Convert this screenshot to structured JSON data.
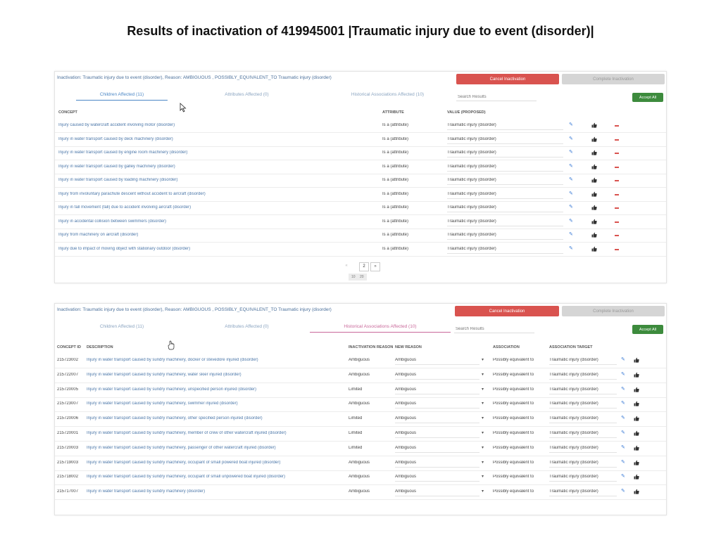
{
  "slide_title": "Results of inactivation of 419945001 |Traumatic injury due to event (disorder)|",
  "panel1": {
    "header_text": "Inactivation: Traumatic injury due to event (disorder), Reason: AMBIGUOUS , POSSIBLY_EQUIVALENT_TO Traumatic injury (disorder)",
    "cancel_label": "Cancel Inactivation",
    "complete_label": "Complete Inactivation",
    "tabs": [
      "Children Affected (11)",
      "Attributes Affected (0)",
      "Historical Associations Affected (10)"
    ],
    "search_placeholder": "Search Results",
    "accept_label": "Accept All",
    "columns": [
      "CONCEPT",
      "ATTRIBUTE",
      "VALUE (PROPOSED)"
    ],
    "rows": [
      {
        "concept": "Injury caused by watercraft accident involving motor (disorder)",
        "attribute": "Is a (attribute)",
        "value": "Traumatic injury (disorder)"
      },
      {
        "concept": "Injury in water transport caused by deck machinery (disorder)",
        "attribute": "Is a (attribute)",
        "value": "Traumatic injury (disorder)"
      },
      {
        "concept": "Injury in water transport caused by engine room machinery (disorder)",
        "attribute": "Is a (attribute)",
        "value": "Traumatic injury (disorder)"
      },
      {
        "concept": "Injury in water transport caused by galley machinery (disorder)",
        "attribute": "Is a (attribute)",
        "value": "Traumatic injury (disorder)"
      },
      {
        "concept": "Injury in water transport caused by loading machinery (disorder)",
        "attribute": "Is a (attribute)",
        "value": "Traumatic injury (disorder)"
      },
      {
        "concept": "Injury from involuntary parachute descent without accident to aircraft (disorder)",
        "attribute": "Is a (attribute)",
        "value": "Traumatic injury (disorder)"
      },
      {
        "concept": "Injury in fall movement (fall) due to accident involving aircraft (disorder)",
        "attribute": "Is a (attribute)",
        "value": "Traumatic injury (disorder)"
      },
      {
        "concept": "Injury in accidental collision between swimmers (disorder)",
        "attribute": "Is a (attribute)",
        "value": "Traumatic injury (disorder)"
      },
      {
        "concept": "Injury from machinery on aircraft (disorder)",
        "attribute": "Is a (attribute)",
        "value": "Traumatic injury (disorder)"
      },
      {
        "concept": "Injury due to impact of moving object with stationary outdoor (disorder)",
        "attribute": "Is a (attribute)",
        "value": "Traumatic injury (disorder)"
      }
    ],
    "pager": {
      "prev": "«",
      "current": "2",
      "next": "»",
      "size_a": "10",
      "size_b": "20"
    }
  },
  "panel2": {
    "header_text": "Inactivation: Traumatic injury due to event (disorder), Reason: AMBIGUOUS , POSSIBLY_EQUIVALENT_TO Traumatic injury (disorder)",
    "cancel_label": "Cancel Inactivation",
    "complete_label": "Complete Inactivation",
    "tabs": [
      "Children Affected (11)",
      "Attributes Affected (0)",
      "Historical Associations Affected (10)"
    ],
    "search_placeholder": "Search Results",
    "accept_label": "Accept All",
    "columns": [
      "CONCEPT ID",
      "DESCRIPTION",
      "INACTIVATION REASON",
      "NEW REASON",
      "ASSOCIATION",
      "ASSOCIATION TARGET"
    ],
    "rows": [
      {
        "id": "215723002",
        "desc": "Injury in water transport caused by sundry machinery, docker or stevedore injured (disorder)",
        "reason": "Ambiguous",
        "new_reason": "Ambiguous",
        "assoc": "Possibly equivalent to",
        "target": "Traumatic injury (disorder)"
      },
      {
        "id": "215722007",
        "desc": "Injury in water transport caused by sundry machinery, water skier injured (disorder)",
        "reason": "Ambiguous",
        "new_reason": "Ambiguous",
        "assoc": "Possibly equivalent to",
        "target": "Traumatic injury (disorder)"
      },
      {
        "id": "215720005",
        "desc": "Injury in water transport caused by sundry machinery, unspecified person injured (disorder)",
        "reason": "Limited",
        "new_reason": "Ambiguous",
        "assoc": "Possibly equivalent to",
        "target": "Traumatic injury (disorder)"
      },
      {
        "id": "215723007",
        "desc": "Injury in water transport caused by sundry machinery, swimmer injured (disorder)",
        "reason": "Ambiguous",
        "new_reason": "Ambiguous",
        "assoc": "Possibly equivalent to",
        "target": "Traumatic injury (disorder)"
      },
      {
        "id": "215720006",
        "desc": "Injury in water transport caused by sundry machinery, other specified person injured (disorder)",
        "reason": "Limited",
        "new_reason": "Ambiguous",
        "assoc": "Possibly equivalent to",
        "target": "Traumatic injury (disorder)"
      },
      {
        "id": "215720001",
        "desc": "Injury in water transport caused by sundry machinery, member of crew of other watercraft injured (disorder)",
        "reason": "Limited",
        "new_reason": "Ambiguous",
        "assoc": "Possibly equivalent to",
        "target": "Traumatic injury (disorder)"
      },
      {
        "id": "215720003",
        "desc": "Injury in water transport caused by sundry machinery, passenger of other watercraft injured (disorder)",
        "reason": "Limited",
        "new_reason": "Ambiguous",
        "assoc": "Possibly equivalent to",
        "target": "Traumatic injury (disorder)"
      },
      {
        "id": "215719003",
        "desc": "Injury in water transport caused by sundry machinery, occupant of small powered boat injured (disorder)",
        "reason": "Ambiguous",
        "new_reason": "Ambiguous",
        "assoc": "Possibly equivalent to",
        "target": "Traumatic injury (disorder)"
      },
      {
        "id": "215718002",
        "desc": "Injury in water transport caused by sundry machinery, occupant of small unpowered boat injured (disorder)",
        "reason": "Ambiguous",
        "new_reason": "Ambiguous",
        "assoc": "Possibly equivalent to",
        "target": "Traumatic injury (disorder)"
      },
      {
        "id": "215717007",
        "desc": "Injury in water transport caused by sundry machinery (disorder)",
        "reason": "Ambiguous",
        "new_reason": "Ambiguous",
        "assoc": "Possibly equivalent to",
        "target": "Traumatic injury (disorder)"
      }
    ]
  },
  "colors": {
    "cancel": "#d9534f",
    "complete": "#d5d5d5",
    "accept": "#3d8b3d",
    "link": "#4a76a8",
    "tab_active": "#4a86c5",
    "tab_active_pink": "#c9689a"
  },
  "icons": [
    "pencil-icon",
    "thumbs-up-icon",
    "minus-icon",
    "chevron-down-icon",
    "cursor-icon"
  ]
}
